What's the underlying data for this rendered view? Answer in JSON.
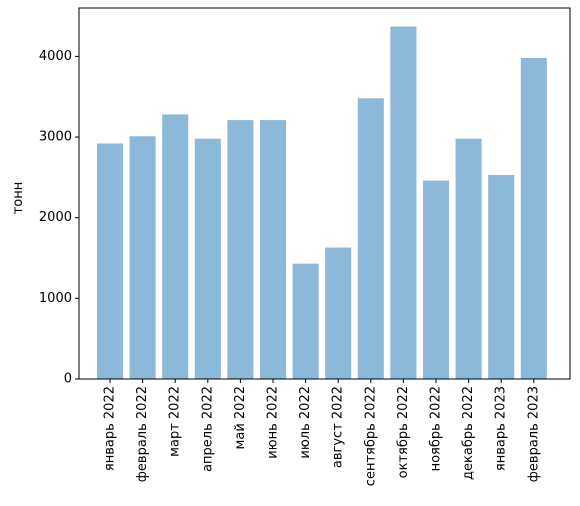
{
  "chart_data": {
    "type": "bar",
    "title": "",
    "xlabel": "",
    "ylabel": "тонн",
    "ylim": [
      0,
      4600
    ],
    "yticks": [
      0,
      1000,
      2000,
      3000,
      4000
    ],
    "grid": false,
    "bar_color": "#8cb9da",
    "categories": [
      "январь 2022",
      "февраль 2022",
      "март 2022",
      "апрель 2022",
      "май 2022",
      "июнь 2022",
      "июль 2022",
      "август 2022",
      "сентябрь 2022",
      "октябрь 2022",
      "ноябрь 2022",
      "декабрь 2022",
      "январь 2023",
      "февраль 2023"
    ],
    "values": [
      2920,
      3010,
      3280,
      2980,
      3210,
      3210,
      1430,
      1630,
      3480,
      4370,
      2460,
      2980,
      2530,
      3980
    ]
  }
}
